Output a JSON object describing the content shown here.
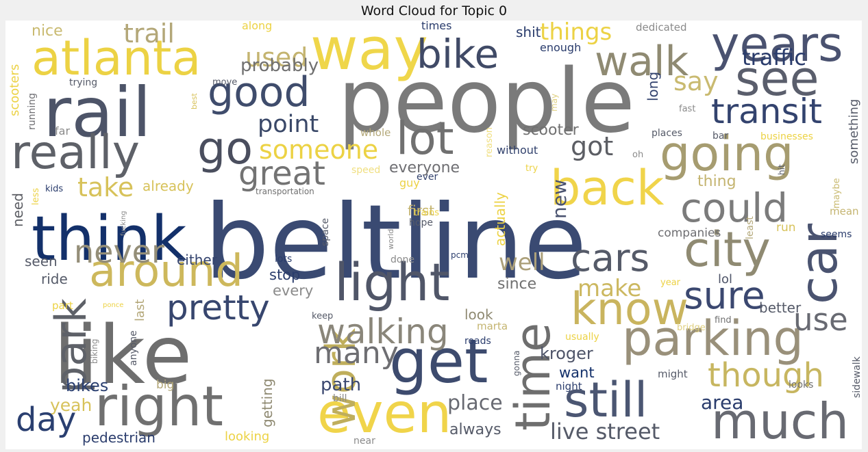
{
  "title": "Word Cloud for Topic 0",
  "chart_data": {
    "type": "wordcloud",
    "title": "Word Cloud for Topic 0",
    "words": [
      {
        "text": "beltline",
        "color": "#3a4a72"
      },
      {
        "text": "people",
        "color": "#7a7a7a"
      },
      {
        "text": "like",
        "color": "#6e6e6e"
      },
      {
        "text": "rail",
        "color": "#4d5468"
      },
      {
        "text": "think",
        "color": "#13306a"
      },
      {
        "text": "way",
        "color": "#efd64a"
      },
      {
        "text": "atlanta",
        "color": "#ecd244"
      },
      {
        "text": "years",
        "color": "#4a5270"
      },
      {
        "text": "really",
        "color": "#5e6168"
      },
      {
        "text": "get",
        "color": "#3d4b6e"
      },
      {
        "text": "right",
        "color": "#707070"
      },
      {
        "text": "city",
        "color": "#8f8a72"
      },
      {
        "text": "going",
        "color": "#a69c70"
      },
      {
        "text": "parking",
        "color": "#99907a"
      },
      {
        "text": "even",
        "color": "#f0d44a"
      },
      {
        "text": "light",
        "color": "#505668"
      },
      {
        "text": "car",
        "color": "#4a5370"
      },
      {
        "text": "time",
        "color": "#6e6e6e"
      },
      {
        "text": "around",
        "color": "#cdb85c"
      },
      {
        "text": "much",
        "color": "#686a72"
      },
      {
        "text": "still",
        "color": "#4b5672"
      },
      {
        "text": "back",
        "color": "#f0d44a"
      },
      {
        "text": "know",
        "color": "#c9b45e"
      },
      {
        "text": "see",
        "color": "#5a5e6c"
      },
      {
        "text": "walk",
        "color": "#8f8a72"
      },
      {
        "text": "lot",
        "color": "#707070"
      },
      {
        "text": "go",
        "color": "#4a4e5e"
      },
      {
        "text": "good",
        "color": "#3f4c6c"
      },
      {
        "text": "bike",
        "color": "#404a66"
      },
      {
        "text": "could",
        "color": "#7b7b7b"
      },
      {
        "text": "park",
        "color": "#5e6168"
      },
      {
        "text": "work",
        "color": "#bfae5c"
      },
      {
        "text": "cars",
        "color": "#555a68"
      },
      {
        "text": "sure",
        "color": "#3b4870"
      },
      {
        "text": "transit",
        "color": "#33436e"
      },
      {
        "text": "pretty",
        "color": "#37466e"
      },
      {
        "text": "walking",
        "color": "#8a867a"
      },
      {
        "text": "though",
        "color": "#c7b660"
      },
      {
        "text": "great",
        "color": "#737373"
      },
      {
        "text": "never",
        "color": "#948e78"
      },
      {
        "text": "someone",
        "color": "#ecd244"
      },
      {
        "text": "trail",
        "color": "#b3a778"
      },
      {
        "text": "many",
        "color": "#6e6e72"
      },
      {
        "text": "day",
        "color": "#2a3f70"
      },
      {
        "text": "use",
        "color": "#686a72"
      },
      {
        "text": "point",
        "color": "#3a4868"
      },
      {
        "text": "take",
        "color": "#d7c25a"
      },
      {
        "text": "got",
        "color": "#5c5e64"
      },
      {
        "text": "things",
        "color": "#ecd244"
      },
      {
        "text": "used",
        "color": "#c4b470"
      },
      {
        "text": "say",
        "color": "#c9ba70"
      },
      {
        "text": "traffic",
        "color": "#2a3c6c"
      },
      {
        "text": "make",
        "color": "#ccb860"
      },
      {
        "text": "well",
        "color": "#aca07a"
      },
      {
        "text": "new",
        "color": "#4a5370"
      },
      {
        "text": "live street",
        "color": "#555a68"
      },
      {
        "text": "area",
        "color": "#2a3c6c"
      },
      {
        "text": "place",
        "color": "#686a72"
      },
      {
        "text": "probably",
        "color": "#707070"
      },
      {
        "text": "everyone",
        "color": "#6e6e72"
      },
      {
        "text": "scooter",
        "color": "#707070"
      },
      {
        "text": "kroger",
        "color": "#4e5468"
      },
      {
        "text": "path",
        "color": "#3b4870"
      },
      {
        "text": "bikes",
        "color": "#2a3f70"
      },
      {
        "text": "yeah",
        "color": "#d7c25a"
      },
      {
        "text": "either",
        "color": "#33436e"
      },
      {
        "text": "stop",
        "color": "#2a3c6c"
      },
      {
        "text": "every",
        "color": "#8a8a8a"
      },
      {
        "text": "since",
        "color": "#707070"
      },
      {
        "text": "want",
        "color": "#13306a"
      },
      {
        "text": "always",
        "color": "#555a68"
      },
      {
        "text": "shit",
        "color": "#2a3c6c"
      },
      {
        "text": "nice",
        "color": "#c9ba70"
      },
      {
        "text": "long",
        "color": "#33436e"
      },
      {
        "text": "actually",
        "color": "#ecd244"
      },
      {
        "text": "already",
        "color": "#d7c25a"
      },
      {
        "text": "seen",
        "color": "#555a68"
      },
      {
        "text": "ride",
        "color": "#555a68"
      },
      {
        "text": "need",
        "color": "#5c5e64"
      },
      {
        "text": "thing",
        "color": "#c4b470"
      },
      {
        "text": "better",
        "color": "#555a68"
      },
      {
        "text": "run",
        "color": "#d7c25a"
      },
      {
        "text": "lol",
        "color": "#4e5468"
      },
      {
        "text": "look",
        "color": "#8f8a72"
      },
      {
        "text": "getting",
        "color": "#8f8a72"
      },
      {
        "text": "something",
        "color": "#555a68"
      },
      {
        "text": "companies",
        "color": "#6e6e72"
      },
      {
        "text": "first",
        "color": "#c4b470"
      },
      {
        "text": "last",
        "color": "#b3a778"
      },
      {
        "text": "scooters",
        "color": "#ecd244"
      },
      {
        "text": "pedestrian",
        "color": "#2a3c6c"
      },
      {
        "text": "looking",
        "color": "#ecd244"
      },
      {
        "text": "along",
        "color": "#ecd244"
      },
      {
        "text": "enough",
        "color": "#2a3c6c"
      },
      {
        "text": "times",
        "color": "#2a3c6c"
      },
      {
        "text": "dedicated",
        "color": "#8a8a8a"
      },
      {
        "text": "trying",
        "color": "#555a68"
      },
      {
        "text": "move",
        "color": "#555a68"
      },
      {
        "text": "running",
        "color": "#6e6e72"
      },
      {
        "text": "best",
        "color": "#d7c25a"
      },
      {
        "text": "far",
        "color": "#8a8a8a"
      },
      {
        "text": "whole",
        "color": "#b3a778"
      },
      {
        "text": "reason",
        "color": "#f0df80"
      },
      {
        "text": "may",
        "color": "#e0d080"
      },
      {
        "text": "fast",
        "color": "#8a8a8a"
      },
      {
        "text": "places",
        "color": "#555a68"
      },
      {
        "text": "bar",
        "color": "#555a68"
      },
      {
        "text": "businesses",
        "color": "#ecd244"
      },
      {
        "text": "without",
        "color": "#33436e"
      },
      {
        "text": "oh",
        "color": "#8a8a8a"
      },
      {
        "text": "speed",
        "color": "#f0df80"
      },
      {
        "text": "try",
        "color": "#ecd244"
      },
      {
        "text": "guy",
        "color": "#ecd244"
      },
      {
        "text": "ever",
        "color": "#33436e"
      },
      {
        "text": "kids",
        "color": "#2a3c6c"
      },
      {
        "text": "less",
        "color": "#ecd244"
      },
      {
        "text": "transportation",
        "color": "#707070"
      },
      {
        "text": "trains",
        "color": "#ecd244"
      },
      {
        "text": "hope",
        "color": "#555a68"
      },
      {
        "text": "fucking",
        "color": "#8a8a8a"
      },
      {
        "text": "space",
        "color": "#555a68"
      },
      {
        "text": "world",
        "color": "#8a8a8a"
      },
      {
        "text": "done",
        "color": "#8a8a8a"
      },
      {
        "text": "pcm",
        "color": "#2a3c6c"
      },
      {
        "text": "lots",
        "color": "#2a3c6c"
      },
      {
        "text": "hit",
        "color": "#555a68"
      },
      {
        "text": "maybe",
        "color": "#c9ba70"
      },
      {
        "text": "mean",
        "color": "#c4b470"
      },
      {
        "text": "least",
        "color": "#b3a778"
      },
      {
        "text": "seems",
        "color": "#2a3c6c"
      },
      {
        "text": "year",
        "color": "#ecd244"
      },
      {
        "text": "part",
        "color": "#ecd244"
      },
      {
        "text": "ponce",
        "color": "#ecd244"
      },
      {
        "text": "keep",
        "color": "#555a68"
      },
      {
        "text": "bridge",
        "color": "#e0d080"
      },
      {
        "text": "find",
        "color": "#707070"
      },
      {
        "text": "marta",
        "color": "#c4b470"
      },
      {
        "text": "usually",
        "color": "#ecd244"
      },
      {
        "text": "roads",
        "color": "#2a3c6c"
      },
      {
        "text": "gonna",
        "color": "#555a68"
      },
      {
        "text": "anyone",
        "color": "#555a68"
      },
      {
        "text": "biking",
        "color": "#8a8a8a"
      },
      {
        "text": "big",
        "color": "#b3a778"
      },
      {
        "text": "bill",
        "color": "#8a8a8a"
      },
      {
        "text": "near",
        "color": "#8a8a8a"
      },
      {
        "text": "might",
        "color": "#555a68"
      },
      {
        "text": "night",
        "color": "#2a3c6c"
      },
      {
        "text": "looks",
        "color": "#707070"
      },
      {
        "text": "sidewalk",
        "color": "#555a68"
      }
    ]
  }
}
